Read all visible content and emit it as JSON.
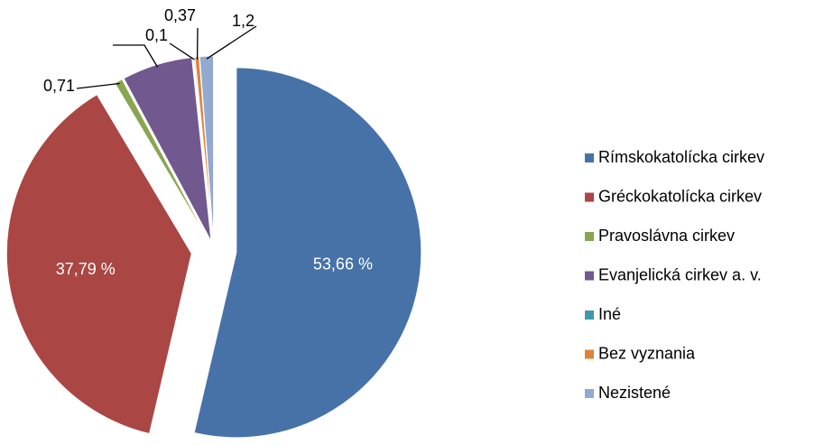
{
  "chart_data": {
    "type": "pie",
    "categories": [
      "Rímskokatolícka cirkev",
      "Gréckokatolícka cirkev",
      "Pravoslávna cirkev",
      "Evanjelická cirkev a. v.",
      "Iné",
      "Bez vyznania",
      "Nezistené"
    ],
    "values": [
      53.66,
      37.79,
      0.71,
      6.17,
      0.1,
      0.37,
      1.2
    ],
    "value_labels": [
      "53,66 %",
      "37,79 %",
      "0,71",
      null,
      "0,1",
      "0,37",
      "1,2"
    ],
    "colors": [
      "#4672a8",
      "#aa4643",
      "#89a54e",
      "#71588f",
      "#4198af",
      "#db843d",
      "#93a9cf"
    ],
    "legend": "right"
  }
}
